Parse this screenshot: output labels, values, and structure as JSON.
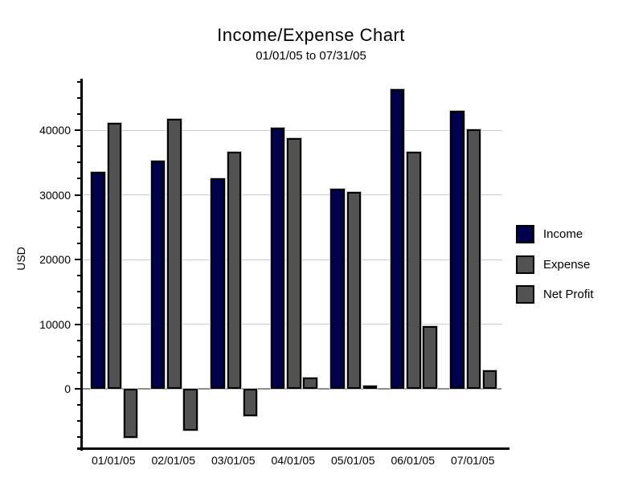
{
  "chart_data": {
    "type": "bar",
    "title": "Income/Expense Chart",
    "subtitle": "01/01/05 to 07/31/05",
    "xlabel": "",
    "ylabel": "USD",
    "categories": [
      "01/01/05",
      "02/01/05",
      "03/01/05",
      "04/01/05",
      "05/01/05",
      "06/01/05",
      "07/01/05"
    ],
    "series": [
      {
        "name": "Income",
        "color": "#00004b",
        "values": [
          33500,
          35300,
          32500,
          40400,
          30900,
          46300,
          43000
        ]
      },
      {
        "name": "Expense",
        "color": "#525252",
        "values": [
          41100,
          41700,
          36700,
          38700,
          30400,
          36600,
          40100
        ]
      },
      {
        "name": "Net Profit",
        "color": "#525252",
        "values": [
          -7600,
          -6400,
          -4200,
          1700,
          500,
          9700,
          2900
        ]
      }
    ],
    "ylim": [
      -8900,
      47700
    ],
    "yticks": [
      0,
      10000,
      20000,
      30000,
      40000
    ],
    "minor_tick_step": 2500,
    "minor_tick_range": [
      -7500,
      47500
    ],
    "grid": true,
    "legend_position": "right",
    "colors": {
      "gridline": "#cccccc",
      "zero_line": "#8c8c8c",
      "axis": "#000000"
    }
  }
}
